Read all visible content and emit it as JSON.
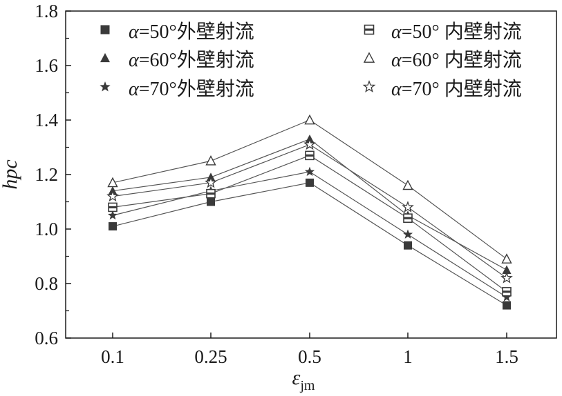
{
  "chart_data": {
    "type": "line",
    "title": "",
    "xlabel": "ε",
    "xlabel_sub": "jm",
    "ylabel": "hpc",
    "categories": [
      "0.1",
      "0.25",
      "0.5",
      "1",
      "1.5"
    ],
    "ylim": [
      0.6,
      1.8
    ],
    "yticks": [
      "0.6",
      "0.8",
      "1.0",
      "1.2",
      "1.4",
      "1.6",
      "1.8"
    ],
    "grid": false,
    "legend_position": "top",
    "series": [
      {
        "name": "α=50°外壁射流",
        "alpha": "α",
        "label": "=50°外壁射流",
        "marker": "square",
        "filled": true,
        "values": [
          1.01,
          1.1,
          1.17,
          0.94,
          0.72
        ]
      },
      {
        "name": "α=60°外壁射流",
        "alpha": "α",
        "label": "=60°外壁射流",
        "marker": "triangle",
        "filled": true,
        "values": [
          1.14,
          1.19,
          1.33,
          1.05,
          0.85
        ]
      },
      {
        "name": "α=70°外壁射流",
        "alpha": "α",
        "label": "=70°外壁射流",
        "marker": "star",
        "filled": true,
        "values": [
          1.05,
          1.14,
          1.21,
          0.98,
          0.75
        ]
      },
      {
        "name": "α=50° 内壁射流",
        "alpha": "α",
        "label": "=50° 内壁射流",
        "marker": "square",
        "filled": false,
        "values": [
          1.08,
          1.13,
          1.27,
          1.04,
          0.77
        ]
      },
      {
        "name": "α=60° 内壁射流",
        "alpha": "α",
        "label": "=60° 内壁射流",
        "marker": "triangle",
        "filled": false,
        "values": [
          1.17,
          1.25,
          1.4,
          1.16,
          0.89
        ]
      },
      {
        "name": "α=70° 内壁射流",
        "alpha": "α",
        "label": "=70° 内壁射流",
        "marker": "star",
        "filled": false,
        "values": [
          1.12,
          1.17,
          1.31,
          1.08,
          0.82
        ]
      }
    ]
  }
}
